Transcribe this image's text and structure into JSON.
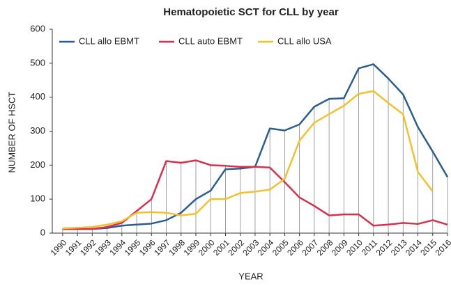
{
  "chart_data": {
    "type": "line",
    "title": "Hematopoietic SCT for CLL by year",
    "x_label": "YEAR",
    "y_label": "NUMBER OF HSCT",
    "x": [
      1990,
      1991,
      1992,
      1993,
      1994,
      1995,
      1996,
      1997,
      1998,
      1999,
      2000,
      2001,
      2002,
      2003,
      2004,
      2005,
      2006,
      2007,
      2008,
      2009,
      2010,
      2011,
      2012,
      2013,
      2014,
      2015,
      2016
    ],
    "xlim": [
      1989.3,
      2016
    ],
    "ylim": [
      0,
      600
    ],
    "yticks": [
      0,
      100,
      200,
      300,
      400,
      500,
      600
    ],
    "drop_lines": true,
    "legend": "top-left",
    "series": [
      {
        "name": "CLL allo EBMT",
        "color": "#2b5d8f",
        "values": [
          12,
          12,
          12,
          15,
          22,
          25,
          28,
          38,
          60,
          100,
          125,
          188,
          190,
          195,
          308,
          302,
          320,
          372,
          395,
          397,
          485,
          497,
          455,
          408,
          312,
          240,
          165
        ]
      },
      {
        "name": "CLL auto EBMT",
        "color": "#d6304a",
        "values": [
          12,
          12,
          12,
          18,
          30,
          65,
          100,
          212,
          207,
          214,
          200,
          198,
          195,
          195,
          193,
          150,
          105,
          80,
          52,
          55,
          55,
          22,
          25,
          30,
          27,
          38,
          25
        ]
      },
      {
        "name": "CLL allo USA",
        "color": "#f2c12e",
        "values": [
          14,
          16,
          18,
          25,
          35,
          60,
          62,
          60,
          52,
          57,
          100,
          100,
          118,
          122,
          128,
          160,
          272,
          325,
          350,
          375,
          410,
          418,
          383,
          350,
          180,
          123,
          null
        ]
      }
    ]
  }
}
